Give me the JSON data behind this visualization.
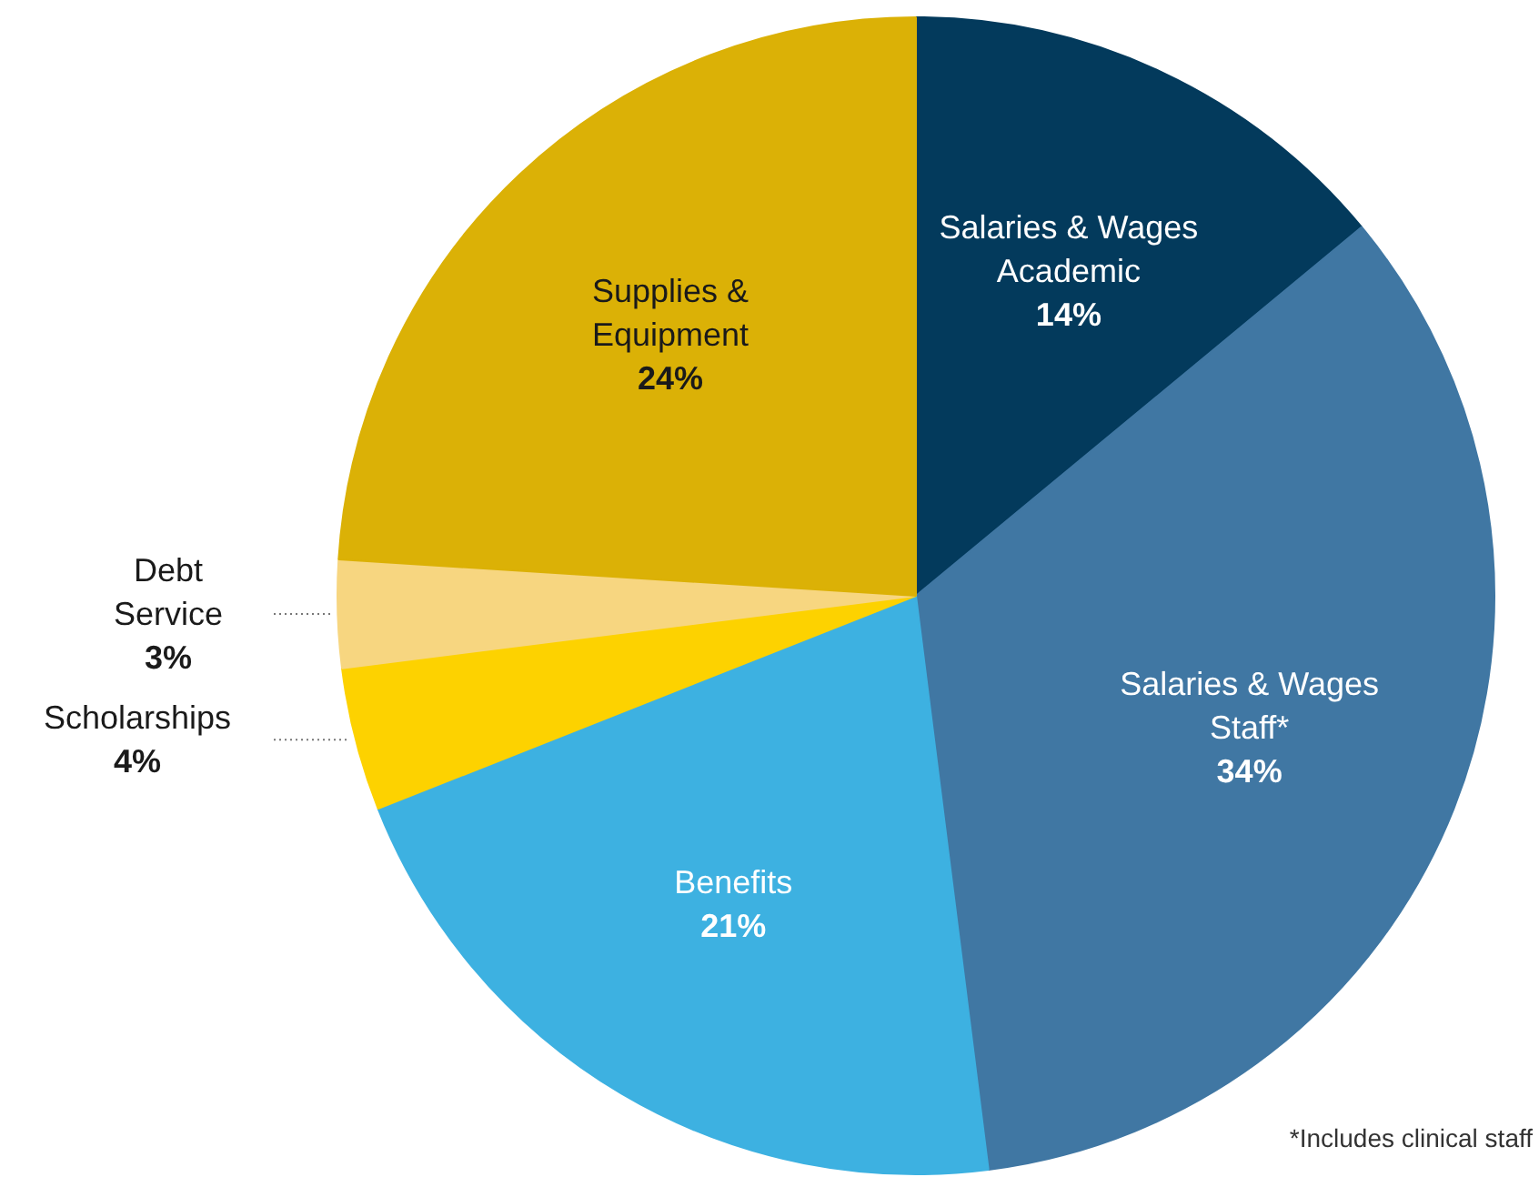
{
  "chart_data": {
    "type": "pie",
    "categories": [
      "Salaries & Wages\nAcademic",
      "Salaries & Wages\nStaff*",
      "Benefits",
      "Scholarships",
      "Debt\nService",
      "Supplies &\nEquipment"
    ],
    "values": [
      14,
      34,
      21,
      4,
      3,
      24
    ],
    "colors": [
      "#033a5c",
      "#4077a3",
      "#3db1e1",
      "#fdd200",
      "#f7d680",
      "#dbb106"
    ],
    "value_labels": [
      "14%",
      "34%",
      "21%",
      "4%",
      "3%",
      "24%"
    ],
    "annotations": [
      "*Includes clinical staff"
    ]
  }
}
